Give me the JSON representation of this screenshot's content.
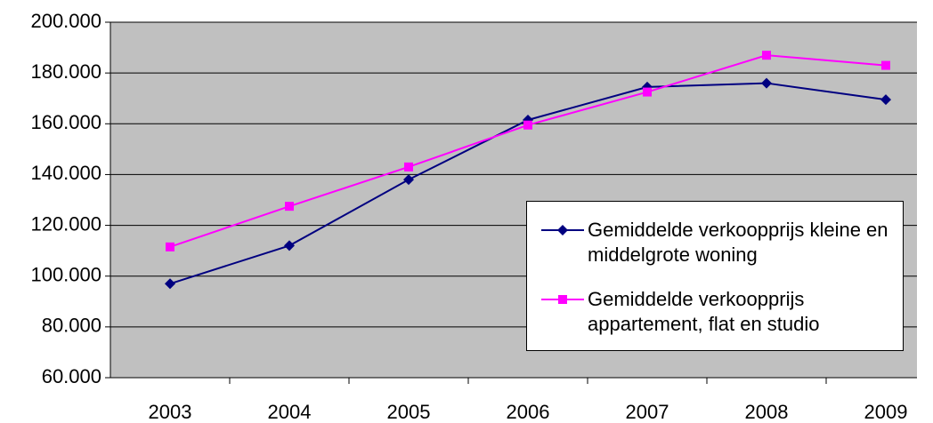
{
  "chart_data": {
    "type": "line",
    "categories": [
      "2003",
      "2004",
      "2005",
      "2006",
      "2007",
      "2008",
      "2009"
    ],
    "series": [
      {
        "name": "Gemiddelde verkoopprijs kleine en middelgrote woning",
        "color": "#000080",
        "marker": "diamond",
        "values": [
          97000,
          112000,
          138000,
          161500,
          174500,
          176000,
          169500
        ]
      },
      {
        "name": "Gemiddelde verkoopprijs appartement, flat en studio",
        "color": "#ff00ff",
        "marker": "square",
        "values": [
          111500,
          127500,
          143000,
          159500,
          172500,
          187000,
          183000
        ]
      }
    ],
    "ylim": [
      60000,
      200000
    ],
    "yticks": [
      {
        "value": 60000,
        "label": "60.000"
      },
      {
        "value": 80000,
        "label": "80.000"
      },
      {
        "value": 100000,
        "label": "100.000"
      },
      {
        "value": 120000,
        "label": "120.000"
      },
      {
        "value": 140000,
        "label": "140.000"
      },
      {
        "value": 160000,
        "label": "160.000"
      },
      {
        "value": 180000,
        "label": "180.000"
      },
      {
        "value": 200000,
        "label": "200.000"
      }
    ],
    "grid": true,
    "plot_background": "#c0c0c0"
  }
}
